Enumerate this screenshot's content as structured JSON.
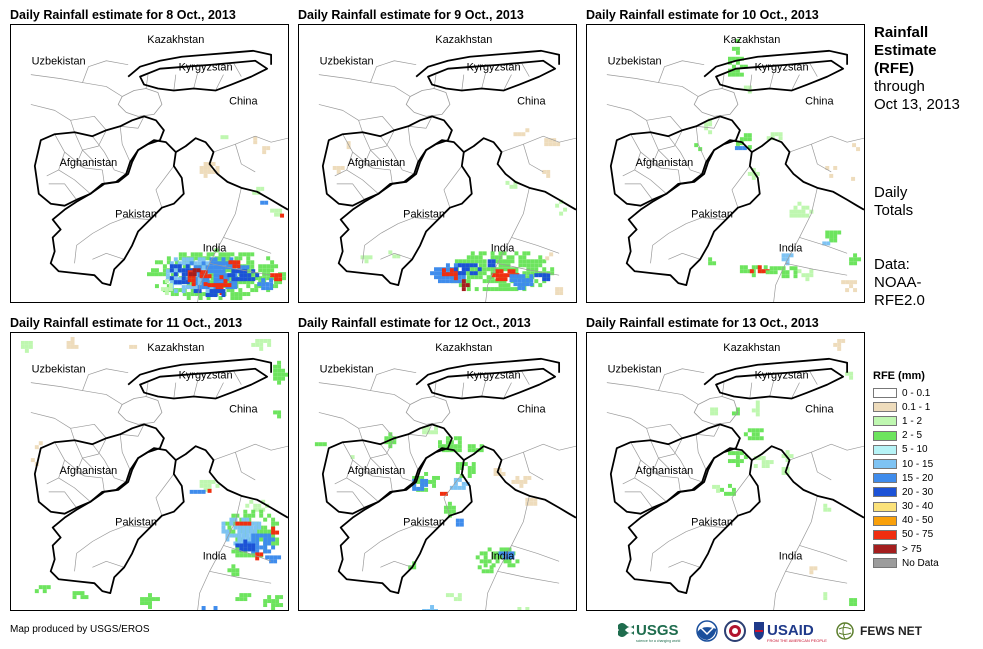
{
  "panels": [
    {
      "title": "Daily Rainfall estimate for 8 Oct., 2013"
    },
    {
      "title": "Daily Rainfall estimate for 9 Oct., 2013"
    },
    {
      "title": "Daily Rainfall estimate for 10 Oct., 2013"
    },
    {
      "title": "Daily Rainfall estimate for 11 Oct., 2013"
    },
    {
      "title": "Daily Rainfall estimate for 12 Oct., 2013"
    },
    {
      "title": "Daily Rainfall estimate for 13 Oct., 2013"
    }
  ],
  "map_labels": {
    "kazakhstan": "Kazakhstan",
    "uzbekistan": "Uzbekistan",
    "kyrgyzstan": "Kyrgyzstan",
    "china": "China",
    "afghanistan": "Afghanistan",
    "pakistan": "Pakistan",
    "india": "India"
  },
  "sidebar": {
    "title_line1": "Rainfall",
    "title_line2": "Estimate",
    "title_line3": "(RFE)",
    "title_line4": "through",
    "title_line5": "Oct 13, 2013",
    "totals_line1": "Daily",
    "totals_line2": "Totals",
    "data_line1": "Data:",
    "data_line2": "NOAA-",
    "data_line3": "RFE2.0"
  },
  "legend": {
    "title": "RFE (mm)",
    "items": [
      {
        "label": "0 - 0.1",
        "color": "#ffffff"
      },
      {
        "label": "0.1 - 1",
        "color": "#eedcbc"
      },
      {
        "label": "1 - 2",
        "color": "#bff7b0"
      },
      {
        "label": "2 - 5",
        "color": "#6de45e"
      },
      {
        "label": "5 - 10",
        "color": "#b6f3f6"
      },
      {
        "label": "10 - 15",
        "color": "#7ec3f3"
      },
      {
        "label": "15 - 20",
        "color": "#3f8cec"
      },
      {
        "label": "20 - 30",
        "color": "#1c52d6"
      },
      {
        "label": "30 - 40",
        "color": "#fbe27a"
      },
      {
        "label": "40 - 50",
        "color": "#f9a00a"
      },
      {
        "label": "50 - 75",
        "color": "#f02e10"
      },
      {
        "label": "> 75",
        "color": "#a41e1e"
      },
      {
        "label": "No Data",
        "color": "#9c9c9c"
      }
    ]
  },
  "credit": "Map produced by USGS/EROS",
  "logos": {
    "usgs": "USGS",
    "usgs_tagline": "science for a changing world",
    "usaid": "USAID",
    "usaid_tagline": "FROM THE AMERICAN PEOPLE",
    "fewsnet": "FEWS NET"
  }
}
